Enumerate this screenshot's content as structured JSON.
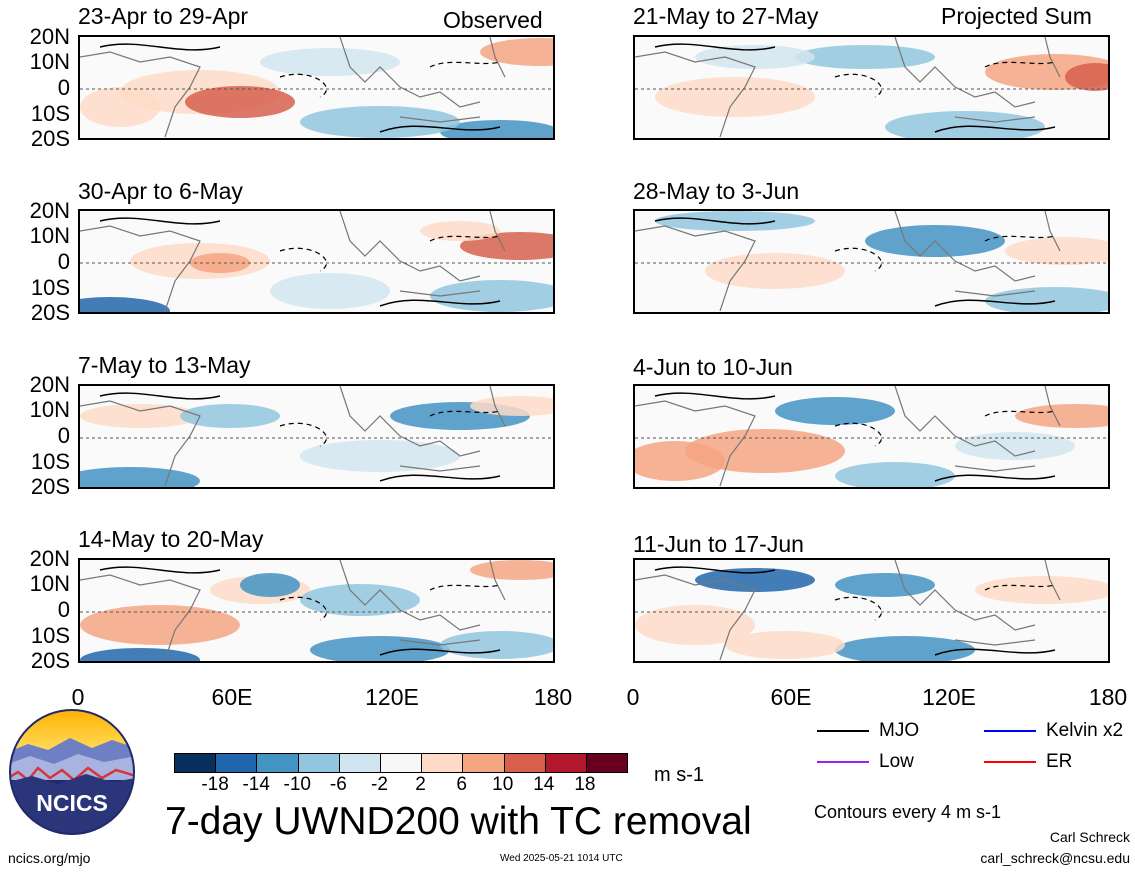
{
  "left_column": {
    "header": "Observed",
    "panels": [
      {
        "title": "23-Apr to 29-Apr"
      },
      {
        "title": "30-Apr to 6-May"
      },
      {
        "title": "7-May to 13-May"
      },
      {
        "title": "14-May to 20-May"
      }
    ]
  },
  "right_column": {
    "header": "Projected Sum",
    "panels": [
      {
        "title": "21-May to 27-May"
      },
      {
        "title": "28-May to 3-Jun"
      },
      {
        "title": "4-Jun to 10-Jun"
      },
      {
        "title": "11-Jun to 17-Jun"
      }
    ]
  },
  "y_ticks": [
    "20N",
    "10N",
    "0",
    "10S",
    "20S"
  ],
  "x_ticks": [
    "0",
    "60E",
    "120E",
    "180"
  ],
  "colorbar": {
    "ticks": [
      "-18",
      "-14",
      "-10",
      "-6",
      "-2",
      "2",
      "6",
      "10",
      "14",
      "18"
    ],
    "colors": [
      "#08305c",
      "#2166ac",
      "#4393c3",
      "#92c5de",
      "#d1e5f0",
      "#f7f7f7",
      "#fddbc7",
      "#f4a582",
      "#d6604d",
      "#b2182b",
      "#67001f"
    ],
    "units": "m s-1"
  },
  "legend": {
    "items": [
      {
        "label": "MJO",
        "color": "#000000"
      },
      {
        "label": "Kelvin x2",
        "color": "#0000ff"
      },
      {
        "label": "Low",
        "color": "#a020f0"
      },
      {
        "label": "ER",
        "color": "#ff0000"
      }
    ],
    "contour_note": "Contours every 4 m s-1"
  },
  "main_title": "7-day UWND200 with TC removal",
  "logo_text": "NCICS",
  "footer": {
    "site": "ncics.org/mjo",
    "timestamp": "Wed 2025-05-21 1014 UTC",
    "author": "Carl Schreck",
    "email": "carl_schreck@ncsu.edu"
  }
}
